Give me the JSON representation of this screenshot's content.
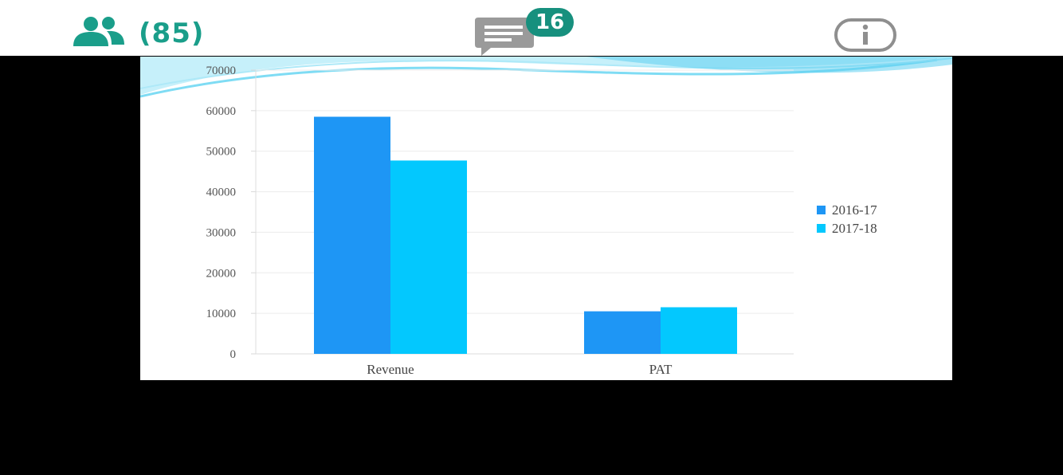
{
  "toolbar": {
    "participants_count": "(85)",
    "chat_unread": "16",
    "accent_color": "#1a9e8a",
    "icons": {
      "participants": "people-icon",
      "chat": "chat-message-icon",
      "info": "info-icon"
    }
  },
  "screen_share": {
    "background": "#000000"
  },
  "chart_data": {
    "type": "bar",
    "categories": [
      "Revenue",
      "PAT"
    ],
    "series": [
      {
        "name": "2016-17",
        "values": [
          58500,
          10500
        ],
        "color": "#1e96f5"
      },
      {
        "name": "2017-18",
        "values": [
          47700,
          11500
        ],
        "color": "#03c8fe"
      }
    ],
    "y_ticks": [
      "0",
      "10000",
      "20000",
      "30000",
      "40000",
      "50000",
      "60000",
      "70000"
    ],
    "ylim": [
      0,
      70000
    ],
    "title": "",
    "xlabel": "",
    "ylabel": "",
    "grid": true,
    "legend_position": "right"
  }
}
